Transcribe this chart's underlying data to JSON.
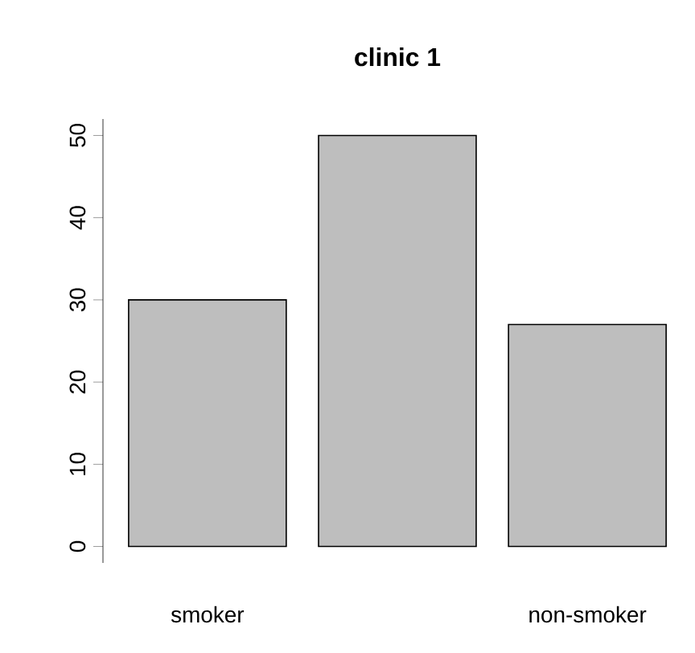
{
  "chart_data": {
    "type": "bar",
    "title": "clinic 1",
    "categories": [
      "smoker",
      null,
      "non-smoker"
    ],
    "values": [
      30,
      50,
      27
    ],
    "color": "#bebebe",
    "ylim": [
      -2,
      52
    ],
    "yticks": [
      0,
      10,
      20,
      30,
      40,
      50
    ]
  }
}
